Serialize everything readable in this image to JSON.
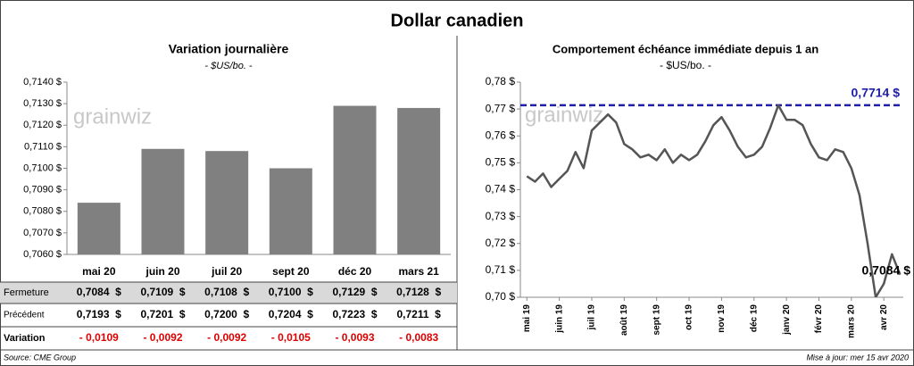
{
  "title": "Dollar canadien",
  "watermark": "grainwiz",
  "chart_data": [
    {
      "type": "bar",
      "title": "Variation  journalière",
      "subtitle": "- $US/bo. -",
      "categories": [
        "mai 20",
        "juin 20",
        "juil 20",
        "sept 20",
        "déc 20",
        "mars 21"
      ],
      "values": [
        0.7084,
        0.7109,
        0.7108,
        0.71,
        0.7129,
        0.7128
      ],
      "value_labels": [
        "0,7084  $",
        "0,7109  $",
        "0,7108  $",
        "0,7100  $",
        "0,7129  $",
        "0,7128  $"
      ],
      "color": "#808080",
      "ylim": [
        0.706,
        0.714
      ],
      "yticks": [
        {
          "value": 0.706,
          "label": "0,7060 $"
        },
        {
          "value": 0.707,
          "label": "0,7070 $"
        },
        {
          "value": 0.708,
          "label": "0,7080 $"
        },
        {
          "value": 0.709,
          "label": "0,7090 $"
        },
        {
          "value": 0.71,
          "label": "0,7100 $"
        },
        {
          "value": 0.711,
          "label": "0,7110 $"
        },
        {
          "value": 0.712,
          "label": "0,7120 $"
        },
        {
          "value": 0.713,
          "label": "0,7130 $"
        },
        {
          "value": 0.714,
          "label": "0,7140 $"
        }
      ],
      "grid": false
    },
    {
      "type": "line",
      "title": "Comportement échéance immédiate depuis 1 an",
      "subtitle": "- $US/bo. -",
      "x": [
        0,
        0.25,
        0.5,
        0.75,
        1,
        1.25,
        1.5,
        1.75,
        2,
        2.25,
        2.5,
        2.75,
        3,
        3.25,
        3.5,
        3.75,
        4,
        4.25,
        4.5,
        4.75,
        5,
        5.25,
        5.5,
        5.75,
        6,
        6.25,
        6.5,
        6.75,
        7,
        7.25,
        7.5,
        7.75,
        8,
        8.25,
        8.5,
        8.75,
        9,
        9.25,
        9.5,
        9.75,
        10,
        10.25,
        10.5,
        10.75,
        11,
        11.25,
        11.5
      ],
      "values": [
        0.745,
        0.743,
        0.746,
        0.741,
        0.744,
        0.747,
        0.754,
        0.748,
        0.762,
        0.765,
        0.768,
        0.765,
        0.757,
        0.755,
        0.752,
        0.753,
        0.751,
        0.755,
        0.75,
        0.753,
        0.751,
        0.753,
        0.758,
        0.764,
        0.767,
        0.762,
        0.756,
        0.752,
        0.753,
        0.756,
        0.763,
        0.7714,
        0.766,
        0.766,
        0.764,
        0.757,
        0.752,
        0.751,
        0.755,
        0.754,
        0.748,
        0.738,
        0.72,
        0.7,
        0.705,
        0.716,
        0.7084
      ],
      "color": "#555555",
      "xlim": [
        -0.2,
        11.6
      ],
      "xticks": [
        {
          "value": 0,
          "label": "mai 19"
        },
        {
          "value": 1,
          "label": "juin 19"
        },
        {
          "value": 2,
          "label": "juil 19"
        },
        {
          "value": 3,
          "label": "août 19"
        },
        {
          "value": 4,
          "label": "sept 19"
        },
        {
          "value": 5,
          "label": "oct 19"
        },
        {
          "value": 6,
          "label": "nov 19"
        },
        {
          "value": 7,
          "label": "déc 19"
        },
        {
          "value": 8,
          "label": "janv 20"
        },
        {
          "value": 9,
          "label": "févr 20"
        },
        {
          "value": 10,
          "label": "mars 20"
        },
        {
          "value": 11,
          "label": "avr 20"
        }
      ],
      "ylim": [
        0.7,
        0.78
      ],
      "yticks": [
        {
          "value": 0.7,
          "label": "0,70 $"
        },
        {
          "value": 0.71,
          "label": "0,71 $"
        },
        {
          "value": 0.72,
          "label": "0,72 $"
        },
        {
          "value": 0.73,
          "label": "0,73 $"
        },
        {
          "value": 0.74,
          "label": "0,74 $"
        },
        {
          "value": 0.75,
          "label": "0,75 $"
        },
        {
          "value": 0.76,
          "label": "0,76 $"
        },
        {
          "value": 0.77,
          "label": "0,77 $"
        },
        {
          "value": 0.78,
          "label": "0,78 $"
        }
      ],
      "grid": false,
      "reference_line": {
        "value": 0.7714,
        "label": "0,7714 $",
        "color": "#1e1ea8"
      },
      "end_label": {
        "value": 0.7084,
        "label": "0,7084 $"
      }
    }
  ],
  "table": {
    "row_labels": [
      "Fermeture",
      "Précédent",
      "Variation"
    ],
    "previous": [
      "0,7193  $",
      "0,7201  $",
      "0,7200  $",
      "0,7204  $",
      "0,7223  $",
      "0,7211  $"
    ],
    "change": [
      "- 0,0109",
      "- 0,0092",
      "- 0,0092",
      "- 0,0105",
      "- 0,0093",
      "- 0,0083"
    ]
  },
  "source": "Source: CME Group",
  "updated": "Mise à jour: mer 15 avr 2020"
}
